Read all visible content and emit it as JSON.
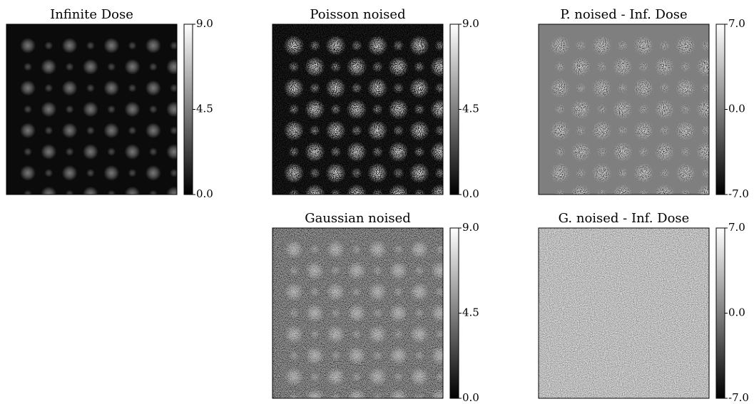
{
  "chart_data": [
    {
      "type": "image",
      "title": "Infinite Dose",
      "clim": [
        0,
        9
      ],
      "cticks": [
        {
          "value": 0,
          "label": "0.0"
        },
        {
          "value": 4.5,
          "label": "4.5"
        },
        {
          "value": 9,
          "label": "9.0"
        }
      ],
      "cmap": "gray"
    },
    {
      "type": "image",
      "title": "Poisson noised",
      "clim": [
        0,
        9
      ],
      "cticks": [
        {
          "value": 0,
          "label": "0.0"
        },
        {
          "value": 4.5,
          "label": "4.5"
        },
        {
          "value": 9,
          "label": "9.0"
        }
      ],
      "cmap": "gray"
    },
    {
      "type": "image",
      "title": "P. noised - Inf. Dose",
      "clim": [
        -7,
        7
      ],
      "cticks": [
        {
          "value": -7,
          "label": "-7.0"
        },
        {
          "value": 0,
          "label": "0.0"
        },
        {
          "value": 7,
          "label": "7.0"
        }
      ],
      "cmap": "gray"
    },
    {
      "type": "image",
      "title": "Gaussian noised",
      "clim": [
        0,
        9
      ],
      "cticks": [
        {
          "value": 0,
          "label": "0.0"
        },
        {
          "value": 4.5,
          "label": "4.5"
        },
        {
          "value": 9,
          "label": "9.0"
        }
      ],
      "cmap": "gray"
    },
    {
      "type": "image",
      "title": "G. noised - Inf. Dose",
      "clim": [
        -7,
        7
      ],
      "cticks": [
        {
          "value": -7,
          "label": "-7.0"
        },
        {
          "value": 0,
          "label": "0.0"
        },
        {
          "value": 7,
          "label": "7.0"
        }
      ],
      "cmap": "gray"
    }
  ]
}
